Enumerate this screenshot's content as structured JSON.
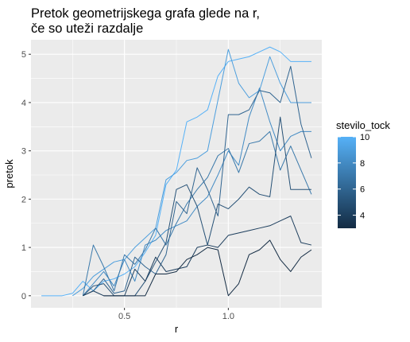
{
  "chart_data": {
    "type": "line",
    "title": [
      "Pretok geometrijskega grafa glede na r,",
      "če so uteži razdalje"
    ],
    "xlabel": "r",
    "ylabel": "pretok",
    "xlim": [
      0.05,
      1.45
    ],
    "ylim": [
      -0.25,
      5.3
    ],
    "x_ticks": [
      0.5,
      1.0
    ],
    "x_tick_labels": [
      "0.5",
      "1.0"
    ],
    "y_ticks": [
      0,
      1,
      2,
      3,
      4,
      5
    ],
    "y_tick_labels": [
      "0",
      "1",
      "2",
      "3",
      "4",
      "5"
    ],
    "grid": true,
    "legend": {
      "title": "stevilo_tock",
      "position": "right",
      "type": "colorbar",
      "range": [
        3,
        10
      ],
      "labels": [
        10,
        8,
        6,
        4
      ],
      "low_color": "#132B43",
      "high_color": "#56B1F7"
    },
    "x": [
      0.1,
      0.15,
      0.2,
      0.25,
      0.3,
      0.35,
      0.4,
      0.45,
      0.5,
      0.55,
      0.6,
      0.65,
      0.7,
      0.75,
      0.8,
      0.85,
      0.9,
      0.95,
      1.0,
      1.05,
      1.1,
      1.15,
      1.2,
      1.25,
      1.3,
      1.35,
      1.4
    ],
    "series": [
      {
        "color_value": 10,
        "values": [
          0,
          0,
          0,
          0.05,
          0.3,
          0.1,
          0.3,
          0.35,
          0.45,
          0.6,
          0.9,
          1.25,
          2.3,
          2.6,
          3.6,
          3.7,
          3.85,
          4.55,
          4.85,
          4.9,
          4.95,
          5.05,
          5.15,
          5.05,
          4.85,
          4.85,
          4.85
        ]
      },
      {
        "color_value": 9,
        "values": [
          null,
          null,
          null,
          0,
          0.15,
          0.4,
          0.55,
          0.7,
          0.75,
          1.0,
          1.2,
          1.4,
          2.4,
          2.55,
          2.8,
          2.85,
          3.0,
          4.05,
          5.1,
          4.4,
          4.1,
          4.25,
          4.95,
          4.4,
          4.0,
          4.0,
          4.0
        ]
      },
      {
        "color_value": 8,
        "values": [
          null,
          null,
          null,
          null,
          0,
          0.25,
          0.5,
          0.2,
          0.75,
          0.3,
          1.05,
          1.15,
          1.35,
          1.45,
          1.55,
          1.85,
          2.05,
          2.5,
          3.0,
          2.7,
          3.7,
          4.3,
          3.6,
          3.0,
          3.3,
          3.4,
          3.4
        ]
      },
      {
        "color_value": 7,
        "values": [
          null,
          null,
          null,
          null,
          0,
          1.05,
          0.6,
          0.1,
          0.85,
          0.65,
          0.95,
          1.4,
          1.05,
          1.5,
          1.9,
          2.2,
          2.45,
          2.9,
          3.05,
          2.55,
          3.15,
          3.2,
          3.4,
          2.6,
          3.1,
          2.6,
          2.1
        ]
      },
      {
        "color_value": 6,
        "values": [
          null,
          null,
          null,
          null,
          0,
          0.1,
          0.35,
          0.05,
          0.1,
          0.8,
          0.6,
          0.45,
          0.85,
          1.95,
          1.7,
          2.65,
          2.2,
          1.65,
          3.75,
          3.75,
          3.85,
          4.25,
          4.2,
          4.0,
          4.75,
          3.55,
          2.85
        ]
      },
      {
        "color_value": 5,
        "values": [
          null,
          null,
          null,
          null,
          0,
          0.2,
          0.25,
          0,
          0,
          0,
          0.3,
          0.7,
          1.1,
          2.2,
          2.3,
          1.85,
          1.05,
          1.9,
          1.8,
          2.0,
          2.25,
          2.1,
          2.05,
          3.7,
          2.2,
          2.2,
          2.2
        ]
      },
      {
        "color_value": 4,
        "values": [
          null,
          null,
          null,
          null,
          0,
          0.1,
          0,
          0,
          0,
          0.55,
          0.3,
          0.8,
          0.5,
          0.55,
          0.6,
          1.0,
          1.05,
          1.0,
          1.25,
          1.3,
          1.35,
          1.4,
          1.45,
          1.55,
          1.65,
          1.1,
          1.05
        ]
      },
      {
        "color_value": 3,
        "values": [
          null,
          null,
          null,
          null,
          null,
          null,
          0,
          0,
          0,
          0,
          0,
          0.45,
          0.45,
          0.5,
          0.75,
          0.85,
          1.0,
          0.95,
          0,
          0.25,
          0.85,
          0.95,
          1.15,
          0.75,
          0.5,
          0.8,
          0.95
        ]
      }
    ]
  }
}
